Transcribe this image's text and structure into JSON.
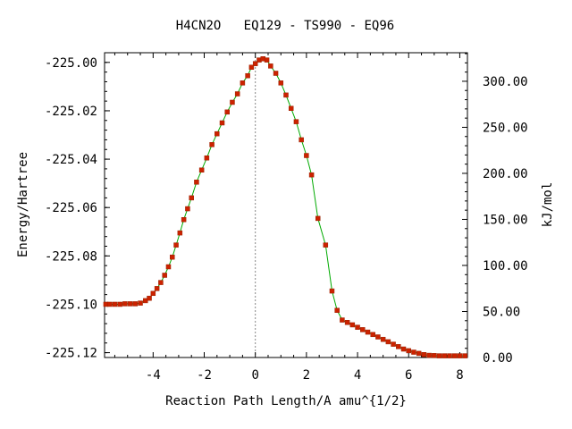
{
  "chart_data": {
    "type": "line",
    "title": "H4CN2O   EQ129 - TS990 - EQ96",
    "xlabel": "Reaction Path Length/A amu^{1/2}",
    "ylabel": "Energy/Hartree",
    "y2label": "kJ/mol",
    "xlim": [
      -5.9,
      8.3
    ],
    "ylim": [
      -225.122,
      -224.996
    ],
    "y2lim": [
      0,
      331
    ],
    "grid": false,
    "x_ticks": [
      -4,
      -2,
      0,
      2,
      4,
      6,
      8
    ],
    "x_tick_labels": [
      "-4",
      "-2",
      "0",
      "2",
      "4",
      "6",
      "8"
    ],
    "y_ticks": [
      -225.12,
      -225.1,
      -225.08,
      -225.06,
      -225.04,
      -225.02,
      -225.0
    ],
    "y_tick_labels": [
      "-225.12",
      "-225.10",
      "-225.08",
      "-225.06",
      "-225.04",
      "-225.02",
      "-225.00"
    ],
    "y2_ticks": [
      0,
      50,
      100,
      150,
      200,
      250,
      300
    ],
    "y2_tick_labels": [
      "0.00",
      "50.00",
      "100.00",
      "150.00",
      "200.00",
      "250.00",
      "300.00"
    ],
    "ts_marker_x": 0,
    "colors": {
      "line": "#00aa00",
      "marker": "#cc2200",
      "ts_line": "#888888"
    },
    "series": [
      {
        "x": [
          -5.85,
          -5.7,
          -5.5,
          -5.3,
          -5.1,
          -4.9,
          -4.7,
          -4.5,
          -4.3,
          -4.15,
          -4.0,
          -3.85,
          -3.7,
          -3.55,
          -3.4,
          -3.25,
          -3.1,
          -2.95,
          -2.8,
          -2.65,
          -2.5,
          -2.3,
          -2.1,
          -1.9,
          -1.7,
          -1.5,
          -1.3,
          -1.1,
          -0.9,
          -0.7,
          -0.5,
          -0.3,
          -0.15,
          0.0,
          0.15,
          0.3,
          0.45,
          0.6,
          0.8,
          1.0,
          1.2,
          1.4,
          1.6,
          1.8,
          2.0,
          2.2,
          2.45,
          2.75,
          3.0,
          3.2,
          3.4,
          3.6,
          3.8,
          4.0,
          4.2,
          4.4,
          4.6,
          4.8,
          5.0,
          5.2,
          5.4,
          5.6,
          5.8,
          6.0,
          6.2,
          6.4,
          6.6,
          6.8,
          7.0,
          7.2,
          7.4,
          7.6,
          7.8,
          8.0,
          8.2
        ],
        "y": [
          -225.1,
          -225.1,
          -225.1,
          -225.1,
          -225.0998,
          -225.0998,
          -225.0998,
          -225.0995,
          -225.0985,
          -225.0975,
          -225.0955,
          -225.0935,
          -225.091,
          -225.088,
          -225.0845,
          -225.0805,
          -225.0755,
          -225.0705,
          -225.065,
          -225.0605,
          -225.056,
          -225.0495,
          -225.0445,
          -225.0395,
          -225.034,
          -225.0295,
          -225.025,
          -225.0205,
          -225.0165,
          -225.013,
          -225.0085,
          -225.0055,
          -225.002,
          -225.0005,
          -224.999,
          -224.9985,
          -224.999,
          -225.0015,
          -225.0045,
          -225.0085,
          -225.0135,
          -225.019,
          -225.0245,
          -225.032,
          -225.0385,
          -225.0465,
          -225.0645,
          -225.0755,
          -225.0945,
          -225.1025,
          -225.1065,
          -225.1075,
          -225.1085,
          -225.1095,
          -225.1105,
          -225.1115,
          -225.1125,
          -225.1135,
          -225.1145,
          -225.1155,
          -225.1165,
          -225.1175,
          -225.1185,
          -225.1192,
          -225.1198,
          -225.1203,
          -225.1208,
          -225.1211,
          -225.1212,
          -225.1213,
          -225.1213,
          -225.1213,
          -225.1213,
          -225.1213,
          -225.1213
        ]
      }
    ]
  }
}
